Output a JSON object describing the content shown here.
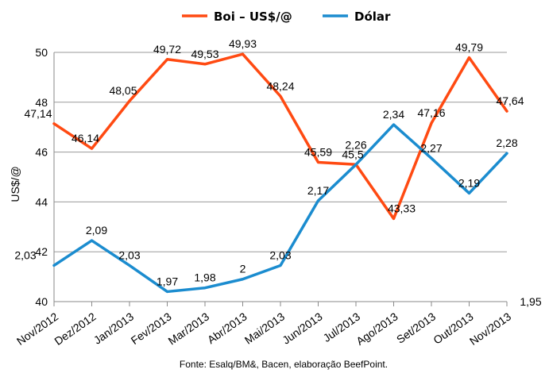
{
  "chart_data": {
    "type": "line",
    "categories": [
      "Nov/2012",
      "Dez/2012",
      "Jan/2013",
      "Fev/2013",
      "Mar/2013",
      "Abr/2013",
      "Mai/2013",
      "Jun/2013",
      "Jul/2013",
      "Ago/2013",
      "Set/2013",
      "Out/2013",
      "Nov/2013"
    ],
    "series": [
      {
        "name": "Boi – US$/@",
        "color": "#ff4a12",
        "values": [
          47.14,
          46.14,
          48.05,
          49.72,
          49.53,
          49.93,
          48.24,
          45.59,
          45.5,
          43.33,
          47.16,
          49.79,
          47.64
        ],
        "labels": [
          "47,14",
          "46,14",
          "48,05",
          "49,72",
          "49,53",
          "49,93",
          "48,24",
          "45,59",
          "45,5",
          "43,33",
          "47,16",
          "49,79",
          "47,64"
        ]
      },
      {
        "name": "Dólar",
        "color": "#1b8ccf",
        "values": [
          41.45,
          42.45,
          41.45,
          40.4,
          40.55,
          40.9,
          41.45,
          44.05,
          45.5,
          47.1,
          45.75,
          44.35,
          45.95
        ],
        "labels": [
          "2,03",
          "2,09",
          "2,03",
          "1,97",
          "1,98",
          "2",
          "2,03",
          "2,17",
          "2,26",
          "2,34",
          "2,27",
          "2,19",
          "2,28"
        ]
      }
    ],
    "extra_label": "1,95",
    "ylabel": "US$/@",
    "ylim": [
      40,
      50
    ],
    "yticks": [
      "40",
      "42",
      "44",
      "46",
      "48",
      "50"
    ],
    "grid": true,
    "legend": "top",
    "source": "Fonte: Esalq/BM&, Bacen, elaboração BeefPoint."
  }
}
